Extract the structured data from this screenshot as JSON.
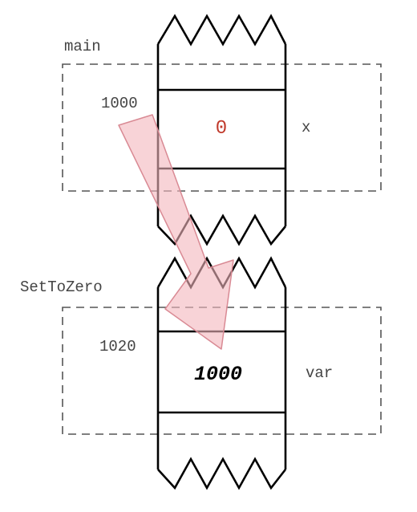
{
  "main_frame": {
    "label": "main",
    "address": "1000",
    "value": "0",
    "variable": "x"
  },
  "settozero_frame": {
    "label": "SetToZero",
    "address": "1020",
    "value": "1000",
    "variable": "var"
  },
  "colors": {
    "outline": "#000000",
    "dashed_box": "#555555",
    "label_text": "#444444",
    "main_value": "#c0392b",
    "param_value": "#000000",
    "arrow_fill": "#f4b6bd",
    "arrow_stroke": "#d98a94"
  }
}
